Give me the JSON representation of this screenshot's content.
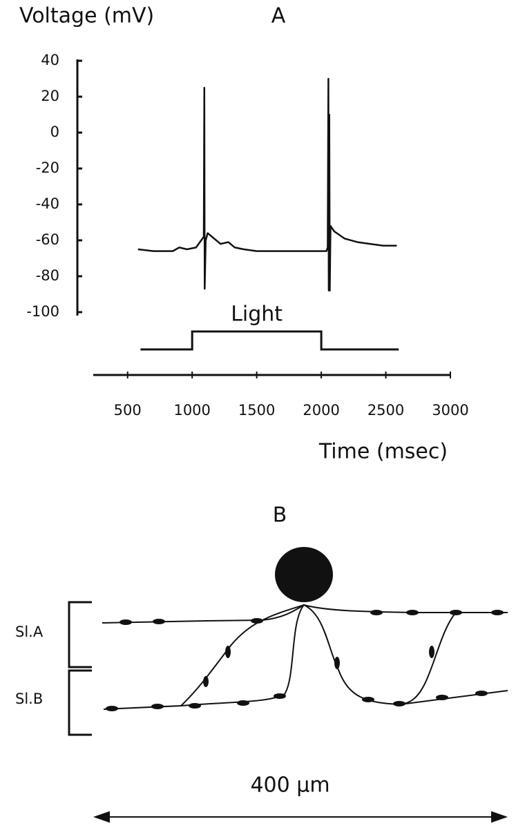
{
  "chart_data": {
    "type": "line",
    "title": "A",
    "ylabel": "Voltage (mV)",
    "xlabel": "Time (msec)",
    "x": [
      580,
      700,
      850,
      900,
      960,
      1030,
      1070,
      1090,
      1094,
      1097,
      1105,
      1120,
      1170,
      1220,
      1280,
      1330,
      1400,
      1500,
      1650,
      1800,
      1950,
      2040,
      2050,
      2055,
      2058,
      2062,
      2066,
      2072,
      2100,
      2180,
      2280,
      2380,
      2480,
      2585
    ],
    "values": [
      -65,
      -66,
      -66,
      -64,
      -65,
      -64,
      -60,
      -58,
      25,
      -87,
      -60,
      -56,
      -59,
      -62,
      -61,
      -64,
      -65,
      -66,
      -66,
      -66,
      -66,
      -66,
      -64,
      30,
      -88,
      10,
      -88,
      -52,
      -55,
      -59,
      -61,
      -62,
      -63,
      -63
    ],
    "color": "#111111",
    "ylim": [
      -100,
      40
    ],
    "yticks": [
      40,
      20,
      0,
      -20,
      -40,
      -60,
      -80,
      -100
    ],
    "xlim": [
      250,
      3000
    ],
    "xticks": [
      500,
      1000,
      1500,
      2000,
      2500,
      3000
    ],
    "stimulus": {
      "label": "Light",
      "times": [
        600,
        1000,
        2000,
        2600
      ]
    }
  },
  "diagram": {
    "title": "B",
    "layers": [
      "Sl.A",
      "Sl.B"
    ],
    "scale_label": "400 μm"
  }
}
